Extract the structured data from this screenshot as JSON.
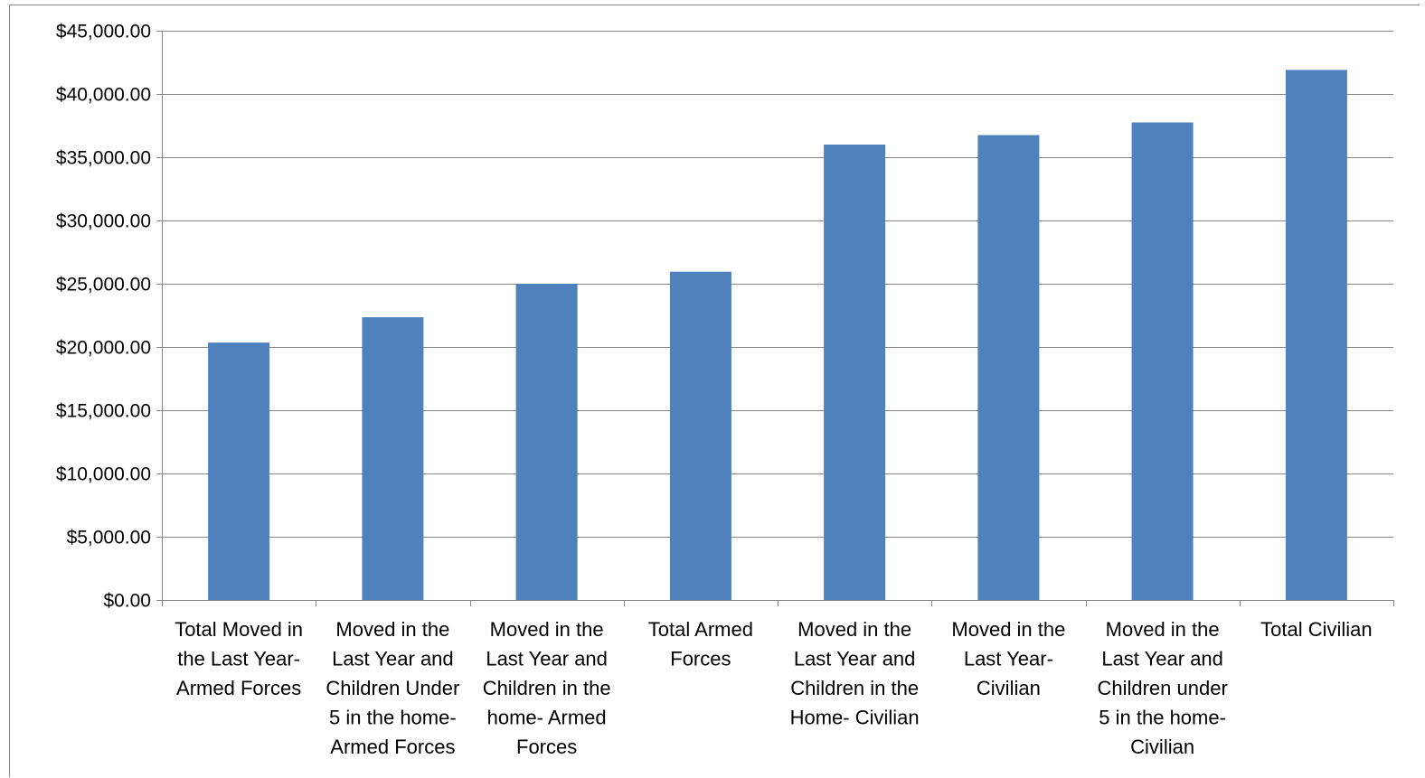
{
  "chart_data": {
    "type": "bar",
    "title": "",
    "xlabel": "",
    "ylabel": "",
    "categories": [
      [
        "Total Moved in",
        "the Last Year-",
        "Armed Forces"
      ],
      [
        "Moved in the",
        "Last Year and",
        "Children Under",
        "5 in the home-",
        "Armed Forces"
      ],
      [
        "Moved in the",
        "Last Year and",
        "Children in the",
        "home- Armed",
        "Forces"
      ],
      [
        "Total Armed",
        "Forces"
      ],
      [
        "Moved in the",
        "Last Year and",
        "Children in the",
        "Home- Civilian"
      ],
      [
        "Moved in the",
        "Last Year-",
        "Civilian"
      ],
      [
        "Moved in the",
        "Last Year and",
        "Children under",
        "5 in the home-",
        "Civilian"
      ],
      [
        "Total Civilian"
      ]
    ],
    "values": [
      20350,
      22350,
      25000,
      25950,
      36000,
      36750,
      37750,
      41900
    ],
    "ylim": [
      0,
      45000
    ],
    "y_ticks": [
      0,
      5000,
      10000,
      15000,
      20000,
      25000,
      30000,
      35000,
      40000,
      45000
    ],
    "y_tick_labels": [
      "$0.00",
      "$5,000.00",
      "$10,000.00",
      "$15,000.00",
      "$20,000.00",
      "$25,000.00",
      "$30,000.00",
      "$35,000.00",
      "$40,000.00",
      "$45,000.00"
    ],
    "grid": true,
    "legend": "none",
    "colors": {
      "bar": "#4F81BD",
      "grid": "#868686",
      "axis": "#868686"
    }
  }
}
